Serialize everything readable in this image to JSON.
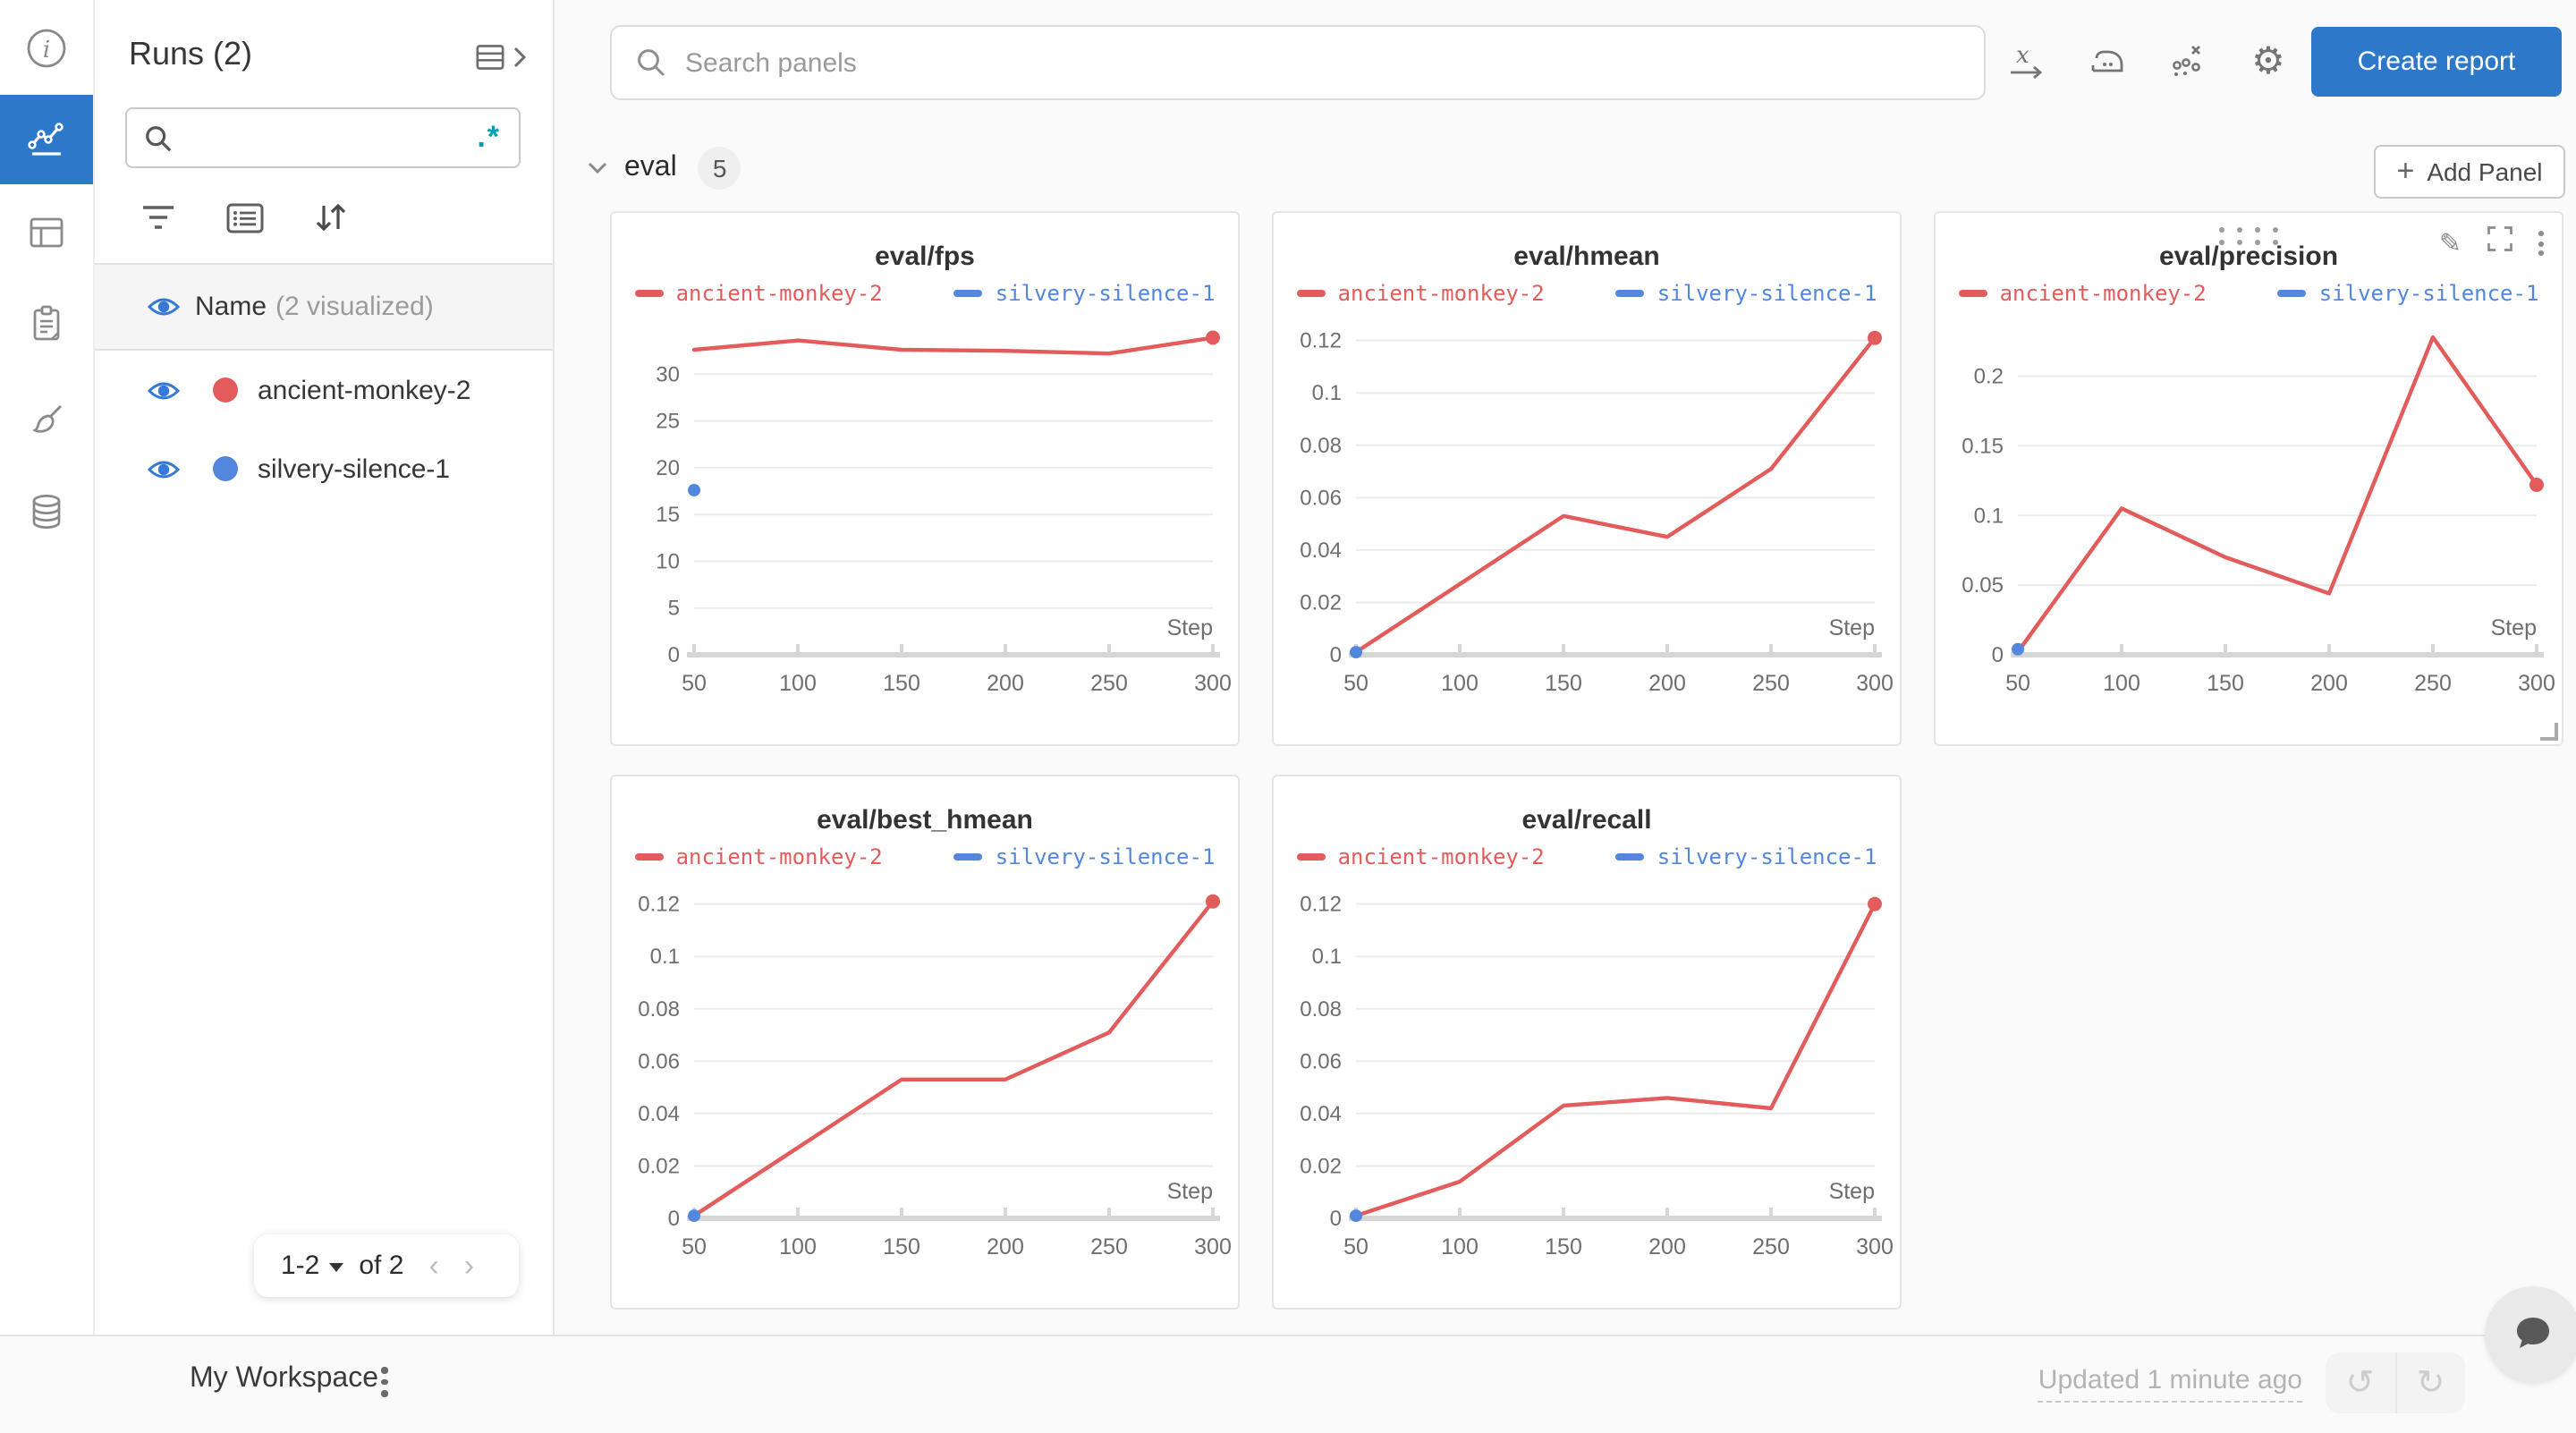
{
  "colors": {
    "accent_blue": "#2d78c8",
    "run_red": "#e25c5c",
    "run_blue": "#5387dd",
    "regex_teal": "#00a0b5",
    "grid_line": "#ebebeb",
    "axis_line": "#d6d6d6",
    "tick_text": "#6e6e6e"
  },
  "sidebar": {
    "title": "Runs (2)",
    "search_placeholder": "",
    "regex_glyph": ".*",
    "name_header": "Name",
    "visualized_note": "(2 visualized)",
    "runs": [
      {
        "name": "ancient-monkey-2",
        "color": "#e25c5c"
      },
      {
        "name": "silvery-silence-1",
        "color": "#5387dd"
      }
    ],
    "pagination": {
      "range": "1-2",
      "of_label": "of 2"
    }
  },
  "topbar": {
    "search_placeholder": "Search panels",
    "create_report_label": "Create report"
  },
  "section": {
    "title": "eval",
    "panel_count": "5",
    "add_panel_label": "Add Panel",
    "plus_glyph": "+"
  },
  "footer": {
    "workspace_label": "My Workspace",
    "updated_label": "Updated 1 minute ago"
  },
  "chart_data": [
    {
      "type": "line",
      "title": "eval/fps",
      "xlabel": "Step",
      "x": [
        50,
        100,
        150,
        200,
        250,
        300
      ],
      "x_ticks": [
        "50",
        "100",
        "150",
        "200",
        "250",
        "300"
      ],
      "y_ticks": [
        "0",
        "5",
        "10",
        "15",
        "20",
        "25",
        "30"
      ],
      "ylim": [
        0,
        35
      ],
      "legend_position": "top",
      "grid": true,
      "controls_visible": false,
      "series": [
        {
          "name": "ancient-monkey-2",
          "color": "#e25c5c",
          "values": [
            32.6,
            33.6,
            32.6,
            32.5,
            32.2,
            33.9
          ]
        },
        {
          "name": "silvery-silence-1",
          "color": "#5387dd",
          "values": [
            17.6,
            null,
            null,
            null,
            null,
            null
          ]
        }
      ]
    },
    {
      "type": "line",
      "title": "eval/hmean",
      "xlabel": "Step",
      "x": [
        50,
        100,
        150,
        200,
        250,
        300
      ],
      "x_ticks": [
        "50",
        "100",
        "150",
        "200",
        "250",
        "300"
      ],
      "y_ticks": [
        "0",
        "0.02",
        "0.04",
        "0.06",
        "0.08",
        "0.1",
        "0.12"
      ],
      "ylim": [
        0,
        0.125
      ],
      "legend_position": "top",
      "grid": true,
      "controls_visible": false,
      "series": [
        {
          "name": "ancient-monkey-2",
          "color": "#e25c5c",
          "values": [
            0.001,
            0.027,
            0.053,
            0.045,
            0.071,
            0.121
          ]
        },
        {
          "name": "silvery-silence-1",
          "color": "#5387dd",
          "values": [
            0.001,
            null,
            null,
            null,
            null,
            null
          ]
        }
      ]
    },
    {
      "type": "line",
      "title": "eval/precision",
      "xlabel": "Step",
      "x": [
        50,
        100,
        150,
        200,
        250,
        300
      ],
      "x_ticks": [
        "50",
        "100",
        "150",
        "200",
        "250",
        "300"
      ],
      "y_ticks": [
        "0",
        "0.05",
        "0.1",
        "0.15",
        "0.2"
      ],
      "ylim": [
        0,
        0.235
      ],
      "legend_position": "top",
      "grid": true,
      "controls_visible": true,
      "series": [
        {
          "name": "ancient-monkey-2",
          "color": "#e25c5c",
          "values": [
            0.002,
            0.105,
            0.07,
            0.044,
            0.228,
            0.122
          ]
        },
        {
          "name": "silvery-silence-1",
          "color": "#5387dd",
          "values": [
            0.004,
            null,
            null,
            null,
            null,
            null
          ]
        }
      ]
    },
    {
      "type": "line",
      "title": "eval/best_hmean",
      "xlabel": "Step",
      "x": [
        50,
        100,
        150,
        200,
        250,
        300
      ],
      "x_ticks": [
        "50",
        "100",
        "150",
        "200",
        "250",
        "300"
      ],
      "y_ticks": [
        "0",
        "0.02",
        "0.04",
        "0.06",
        "0.08",
        "0.1",
        "0.12"
      ],
      "ylim": [
        0,
        0.125
      ],
      "legend_position": "top",
      "grid": true,
      "controls_visible": false,
      "series": [
        {
          "name": "ancient-monkey-2",
          "color": "#e25c5c",
          "values": [
            0.001,
            0.027,
            0.053,
            0.053,
            0.071,
            0.121
          ]
        },
        {
          "name": "silvery-silence-1",
          "color": "#5387dd",
          "values": [
            0.001,
            null,
            null,
            null,
            null,
            null
          ]
        }
      ]
    },
    {
      "type": "line",
      "title": "eval/recall",
      "xlabel": "Step",
      "x": [
        50,
        100,
        150,
        200,
        250,
        300
      ],
      "x_ticks": [
        "50",
        "100",
        "150",
        "200",
        "250",
        "300"
      ],
      "y_ticks": [
        "0",
        "0.02",
        "0.04",
        "0.06",
        "0.08",
        "0.1",
        "0.12"
      ],
      "ylim": [
        0,
        0.125
      ],
      "legend_position": "top",
      "grid": true,
      "controls_visible": false,
      "series": [
        {
          "name": "ancient-monkey-2",
          "color": "#e25c5c",
          "values": [
            0.001,
            0.014,
            0.043,
            0.046,
            0.042,
            0.12
          ]
        },
        {
          "name": "silvery-silence-1",
          "color": "#5387dd",
          "values": [
            0.001,
            null,
            null,
            null,
            null,
            null
          ]
        }
      ]
    }
  ]
}
